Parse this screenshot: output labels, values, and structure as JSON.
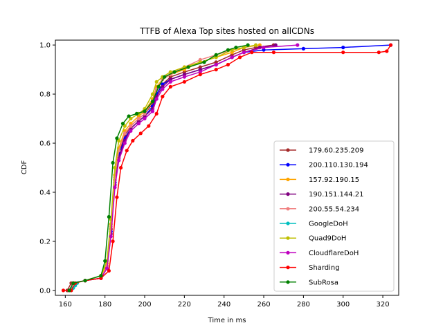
{
  "chart_data": {
    "type": "line",
    "title": "TTFB of Alexa Top sites hosted on allCDNs",
    "xlabel": "Time in ms",
    "ylabel": "CDF",
    "xlim": [
      155,
      328
    ],
    "ylim": [
      -0.02,
      1.02
    ],
    "x_ticks": [
      "160",
      "180",
      "200",
      "220",
      "240",
      "260",
      "280",
      "300",
      "320"
    ],
    "y_ticks": [
      "0.0",
      "0.2",
      "0.4",
      "0.6",
      "0.8",
      "1.0"
    ],
    "legend_position": "lower right",
    "grid": false,
    "series": [
      {
        "name": "179.60.235.209",
        "color": "#a52a2a",
        "points": [
          [
            161,
            0.0
          ],
          [
            163,
            0.03
          ],
          [
            170,
            0.04
          ],
          [
            178,
            0.05
          ],
          [
            181,
            0.1
          ],
          [
            183,
            0.25
          ],
          [
            185,
            0.45
          ],
          [
            187,
            0.56
          ],
          [
            190,
            0.63
          ],
          [
            193,
            0.67
          ],
          [
            197,
            0.7
          ],
          [
            200,
            0.72
          ],
          [
            204,
            0.76
          ],
          [
            206,
            0.8
          ],
          [
            209,
            0.84
          ],
          [
            213,
            0.87
          ],
          [
            220,
            0.89
          ],
          [
            228,
            0.91
          ],
          [
            236,
            0.93
          ],
          [
            244,
            0.96
          ],
          [
            250,
            0.98
          ],
          [
            256,
            0.99
          ],
          [
            265,
            1.0
          ]
        ]
      },
      {
        "name": "200.110.130.194",
        "color": "#0000ff",
        "points": [
          [
            162,
            0.0
          ],
          [
            164,
            0.03
          ],
          [
            170,
            0.04
          ],
          [
            178,
            0.05
          ],
          [
            181,
            0.1
          ],
          [
            183,
            0.24
          ],
          [
            185,
            0.44
          ],
          [
            187,
            0.55
          ],
          [
            190,
            0.62
          ],
          [
            193,
            0.66
          ],
          [
            197,
            0.69
          ],
          [
            200,
            0.71
          ],
          [
            204,
            0.75
          ],
          [
            206,
            0.8
          ],
          [
            209,
            0.84
          ],
          [
            213,
            0.86
          ],
          [
            220,
            0.88
          ],
          [
            228,
            0.9
          ],
          [
            236,
            0.92
          ],
          [
            244,
            0.95
          ],
          [
            250,
            0.97
          ],
          [
            260,
            0.98
          ],
          [
            280,
            0.985
          ],
          [
            300,
            0.99
          ],
          [
            324,
            1.0
          ]
        ]
      },
      {
        "name": "157.92.190.15",
        "color": "#ffa500",
        "points": [
          [
            162,
            0.0
          ],
          [
            164,
            0.03
          ],
          [
            170,
            0.04
          ],
          [
            178,
            0.05
          ],
          [
            181,
            0.11
          ],
          [
            183,
            0.27
          ],
          [
            185,
            0.47
          ],
          [
            187,
            0.58
          ],
          [
            190,
            0.65
          ],
          [
            193,
            0.68
          ],
          [
            197,
            0.71
          ],
          [
            200,
            0.73
          ],
          [
            204,
            0.78
          ],
          [
            206,
            0.83
          ],
          [
            209,
            0.86
          ],
          [
            213,
            0.88
          ],
          [
            220,
            0.9
          ],
          [
            228,
            0.93
          ],
          [
            236,
            0.95
          ],
          [
            244,
            0.97
          ],
          [
            250,
            0.99
          ],
          [
            258,
            1.0
          ]
        ]
      },
      {
        "name": "190.151.144.21",
        "color": "#800080",
        "points": [
          [
            162,
            0.0
          ],
          [
            164,
            0.03
          ],
          [
            170,
            0.04
          ],
          [
            178,
            0.05
          ],
          [
            181,
            0.09
          ],
          [
            183,
            0.23
          ],
          [
            185,
            0.43
          ],
          [
            187,
            0.54
          ],
          [
            190,
            0.61
          ],
          [
            193,
            0.66
          ],
          [
            197,
            0.69
          ],
          [
            200,
            0.71
          ],
          [
            204,
            0.74
          ],
          [
            206,
            0.79
          ],
          [
            209,
            0.83
          ],
          [
            213,
            0.86
          ],
          [
            220,
            0.88
          ],
          [
            228,
            0.9
          ],
          [
            236,
            0.92
          ],
          [
            244,
            0.95
          ],
          [
            250,
            0.97
          ],
          [
            258,
            0.99
          ],
          [
            266,
            1.0
          ]
        ]
      },
      {
        "name": "200.55.54.234",
        "color": "#f08080",
        "points": [
          [
            162,
            0.0
          ],
          [
            164,
            0.03
          ],
          [
            170,
            0.04
          ],
          [
            178,
            0.05
          ],
          [
            181,
            0.1
          ],
          [
            183,
            0.26
          ],
          [
            185,
            0.46
          ],
          [
            187,
            0.57
          ],
          [
            190,
            0.64
          ],
          [
            193,
            0.67
          ],
          [
            197,
            0.7
          ],
          [
            200,
            0.72
          ],
          [
            204,
            0.77
          ],
          [
            206,
            0.82
          ],
          [
            209,
            0.86
          ],
          [
            213,
            0.88
          ],
          [
            220,
            0.91
          ],
          [
            228,
            0.94
          ],
          [
            236,
            0.96
          ],
          [
            244,
            0.98
          ],
          [
            250,
            0.99
          ],
          [
            256,
            1.0
          ]
        ]
      },
      {
        "name": "GoogleDoH",
        "color": "#00bfbf",
        "points": [
          [
            163,
            0.0
          ],
          [
            164,
            0.01
          ],
          [
            165,
            0.02
          ],
          [
            166,
            0.03
          ]
        ]
      },
      {
        "name": "Quad9DoH",
        "color": "#bfbf00",
        "points": [
          [
            162,
            0.0
          ],
          [
            164,
            0.03
          ],
          [
            170,
            0.04
          ],
          [
            178,
            0.06
          ],
          [
            181,
            0.12
          ],
          [
            183,
            0.29
          ],
          [
            185,
            0.5
          ],
          [
            187,
            0.61
          ],
          [
            190,
            0.67
          ],
          [
            193,
            0.7
          ],
          [
            197,
            0.72
          ],
          [
            200,
            0.74
          ],
          [
            204,
            0.8
          ],
          [
            206,
            0.85
          ],
          [
            209,
            0.87
          ],
          [
            213,
            0.89
          ],
          [
            220,
            0.91
          ],
          [
            228,
            0.93
          ],
          [
            236,
            0.95
          ],
          [
            244,
            0.98
          ],
          [
            250,
            0.99
          ],
          [
            256,
            1.0
          ]
        ]
      },
      {
        "name": "CloudflareDoH",
        "color": "#bf00bf",
        "points": [
          [
            162,
            0.0
          ],
          [
            164,
            0.03
          ],
          [
            170,
            0.04
          ],
          [
            178,
            0.05
          ],
          [
            181,
            0.09
          ],
          [
            183,
            0.22
          ],
          [
            185,
            0.42
          ],
          [
            187,
            0.53
          ],
          [
            190,
            0.6
          ],
          [
            193,
            0.65
          ],
          [
            197,
            0.68
          ],
          [
            200,
            0.7
          ],
          [
            204,
            0.73
          ],
          [
            206,
            0.78
          ],
          [
            209,
            0.82
          ],
          [
            213,
            0.85
          ],
          [
            220,
            0.87
          ],
          [
            228,
            0.89
          ],
          [
            236,
            0.92
          ],
          [
            244,
            0.95
          ],
          [
            250,
            0.97
          ],
          [
            260,
            0.99
          ],
          [
            277,
            1.0
          ]
        ]
      },
      {
        "name": "Sharding",
        "color": "#ff0000",
        "points": [
          [
            159,
            0.0
          ],
          [
            163,
            0.0
          ],
          [
            165,
            0.03
          ],
          [
            170,
            0.04
          ],
          [
            178,
            0.05
          ],
          [
            182,
            0.08
          ],
          [
            184,
            0.2
          ],
          [
            186,
            0.38
          ],
          [
            188,
            0.5
          ],
          [
            191,
            0.57
          ],
          [
            194,
            0.61
          ],
          [
            198,
            0.64
          ],
          [
            202,
            0.67
          ],
          [
            206,
            0.72
          ],
          [
            209,
            0.79
          ],
          [
            213,
            0.83
          ],
          [
            220,
            0.85
          ],
          [
            228,
            0.88
          ],
          [
            236,
            0.9
          ],
          [
            242,
            0.92
          ],
          [
            248,
            0.95
          ],
          [
            254,
            0.97
          ],
          [
            265,
            0.97
          ],
          [
            300,
            0.97
          ],
          [
            318,
            0.97
          ],
          [
            322,
            0.975
          ],
          [
            324,
            1.0
          ]
        ]
      },
      {
        "name": "SubRosa",
        "color": "#008000",
        "points": [
          [
            162,
            0.0
          ],
          [
            164,
            0.03
          ],
          [
            170,
            0.04
          ],
          [
            178,
            0.06
          ],
          [
            180,
            0.12
          ],
          [
            182,
            0.3
          ],
          [
            184,
            0.52
          ],
          [
            186,
            0.62
          ],
          [
            189,
            0.68
          ],
          [
            192,
            0.71
          ],
          [
            196,
            0.72
          ],
          [
            200,
            0.73
          ],
          [
            204,
            0.77
          ],
          [
            207,
            0.83
          ],
          [
            210,
            0.87
          ],
          [
            215,
            0.89
          ],
          [
            222,
            0.91
          ],
          [
            230,
            0.93
          ],
          [
            236,
            0.96
          ],
          [
            242,
            0.98
          ],
          [
            246,
            0.99
          ],
          [
            252,
            1.0
          ]
        ]
      }
    ]
  }
}
